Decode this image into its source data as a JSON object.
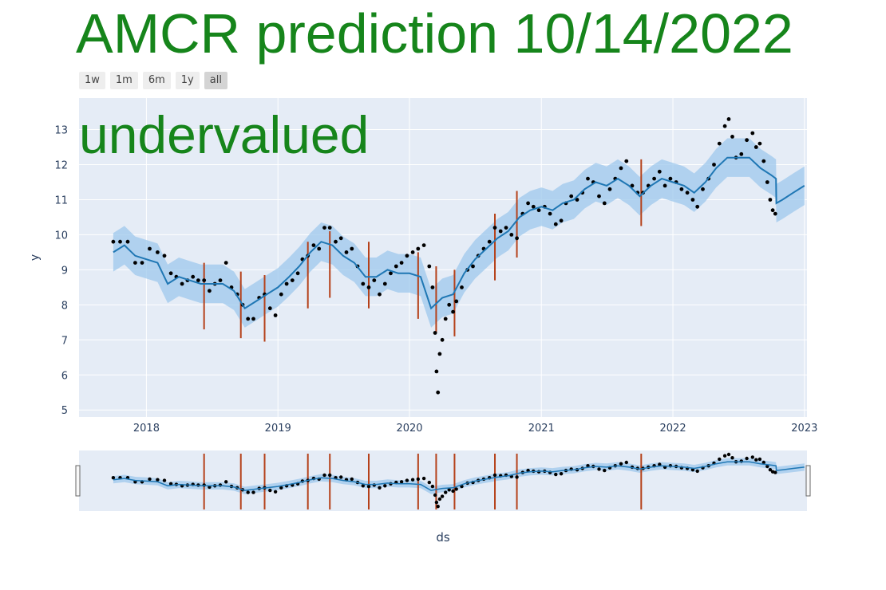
{
  "page": {
    "title": "AMCR prediction 10/14/2022",
    "verdict": "undervalued",
    "range_buttons": [
      {
        "label": "1w",
        "active": false
      },
      {
        "label": "1m",
        "active": false
      },
      {
        "label": "6m",
        "active": false
      },
      {
        "label": "1y",
        "active": false
      },
      {
        "label": "all",
        "active": true
      }
    ]
  },
  "colors": {
    "title": "#16851b",
    "plot_bg": "#e5ecf6",
    "grid": "#ffffff",
    "forecast_line": "#1f77b4",
    "band": "#9ec8ec",
    "points": "#000000",
    "changepoints": "#b5411a"
  },
  "chart_data": {
    "type": "scatter",
    "title": "",
    "xlabel": "ds",
    "ylabel": "y",
    "x_ticks": [
      "2018",
      "2019",
      "2020",
      "2021",
      "2022",
      "2023"
    ],
    "y_ticks": [
      5,
      6,
      7,
      8,
      9,
      10,
      11,
      12,
      13
    ],
    "xlim": [
      "2017-06-28",
      "2023-01-08"
    ],
    "ylim": [
      4.8,
      13.9
    ],
    "grid": true,
    "rangeslider": true,
    "forecast": {
      "name": "yhat",
      "points": [
        [
          "2017-10-01",
          9.5
        ],
        [
          "2017-11-01",
          9.7
        ],
        [
          "2017-12-01",
          9.4
        ],
        [
          "2018-01-01",
          9.3
        ],
        [
          "2018-02-01",
          9.2
        ],
        [
          "2018-03-01",
          8.6
        ],
        [
          "2018-04-01",
          8.8
        ],
        [
          "2018-05-01",
          8.7
        ],
        [
          "2018-06-01",
          8.6
        ],
        [
          "2018-07-01",
          8.6
        ],
        [
          "2018-08-01",
          8.6
        ],
        [
          "2018-09-01",
          8.4
        ],
        [
          "2018-10-01",
          7.9
        ],
        [
          "2018-11-01",
          8.1
        ],
        [
          "2018-12-01",
          8.3
        ],
        [
          "2019-01-01",
          8.5
        ],
        [
          "2019-02-01",
          8.8
        ],
        [
          "2019-03-01",
          9.1
        ],
        [
          "2019-04-01",
          9.5
        ],
        [
          "2019-05-01",
          9.8
        ],
        [
          "2019-06-01",
          9.7
        ],
        [
          "2019-07-01",
          9.4
        ],
        [
          "2019-08-01",
          9.2
        ],
        [
          "2019-09-01",
          8.8
        ],
        [
          "2019-10-01",
          8.8
        ],
        [
          "2019-11-01",
          9.0
        ],
        [
          "2019-12-01",
          8.9
        ],
        [
          "2020-01-01",
          8.9
        ],
        [
          "2020-02-01",
          8.8
        ],
        [
          "2020-03-01",
          7.9
        ],
        [
          "2020-04-01",
          8.2
        ],
        [
          "2020-05-01",
          8.3
        ],
        [
          "2020-06-01",
          8.9
        ],
        [
          "2020-07-01",
          9.3
        ],
        [
          "2020-08-01",
          9.6
        ],
        [
          "2020-09-01",
          9.9
        ],
        [
          "2020-10-01",
          10.1
        ],
        [
          "2020-11-01",
          10.5
        ],
        [
          "2020-12-01",
          10.7
        ],
        [
          "2021-01-01",
          10.8
        ],
        [
          "2021-02-01",
          10.7
        ],
        [
          "2021-03-01",
          10.9
        ],
        [
          "2021-04-01",
          11.0
        ],
        [
          "2021-05-01",
          11.3
        ],
        [
          "2021-06-01",
          11.5
        ],
        [
          "2021-07-01",
          11.4
        ],
        [
          "2021-08-01",
          11.6
        ],
        [
          "2021-09-01",
          11.4
        ],
        [
          "2021-10-01",
          11.1
        ],
        [
          "2021-11-01",
          11.4
        ],
        [
          "2021-12-01",
          11.6
        ],
        [
          "2022-01-01",
          11.5
        ],
        [
          "2022-02-01",
          11.4
        ],
        [
          "2022-03-01",
          11.2
        ],
        [
          "2022-04-01",
          11.5
        ],
        [
          "2022-05-01",
          11.9
        ],
        [
          "2022-06-01",
          12.2
        ],
        [
          "2022-07-01",
          12.2
        ],
        [
          "2022-08-01",
          12.2
        ],
        [
          "2022-09-01",
          11.9
        ],
        [
          "2022-10-01",
          11.7
        ],
        [
          "2022-10-14",
          11.6
        ],
        [
          "2022-10-15",
          10.9
        ],
        [
          "2022-11-01",
          11.0
        ],
        [
          "2022-12-01",
          11.2
        ],
        [
          "2023-01-01",
          11.4
        ]
      ],
      "band_halfwidth": 0.55
    },
    "actual_points": {
      "name": "y",
      "points": [
        [
          "2017-10-01",
          9.8
        ],
        [
          "2017-10-20",
          9.8
        ],
        [
          "2017-11-10",
          9.8
        ],
        [
          "2017-12-01",
          9.2
        ],
        [
          "2017-12-20",
          9.2
        ],
        [
          "2018-01-10",
          9.6
        ],
        [
          "2018-02-01",
          9.5
        ],
        [
          "2018-02-20",
          9.4
        ],
        [
          "2018-03-10",
          8.9
        ],
        [
          "2018-03-25",
          8.8
        ],
        [
          "2018-04-10",
          8.6
        ],
        [
          "2018-04-25",
          8.7
        ],
        [
          "2018-05-10",
          8.8
        ],
        [
          "2018-05-25",
          8.7
        ],
        [
          "2018-06-10",
          8.7
        ],
        [
          "2018-06-25",
          8.4
        ],
        [
          "2018-07-10",
          8.6
        ],
        [
          "2018-07-25",
          8.7
        ],
        [
          "2018-08-10",
          9.2
        ],
        [
          "2018-08-25",
          8.5
        ],
        [
          "2018-09-10",
          8.3
        ],
        [
          "2018-09-25",
          8.0
        ],
        [
          "2018-10-10",
          7.6
        ],
        [
          "2018-10-25",
          7.6
        ],
        [
          "2018-11-10",
          8.2
        ],
        [
          "2018-11-25",
          8.3
        ],
        [
          "2018-12-10",
          7.9
        ],
        [
          "2018-12-25",
          7.7
        ],
        [
          "2019-01-10",
          8.3
        ],
        [
          "2019-01-25",
          8.6
        ],
        [
          "2019-02-10",
          8.7
        ],
        [
          "2019-02-25",
          8.9
        ],
        [
          "2019-03-10",
          9.3
        ],
        [
          "2019-03-25",
          9.4
        ],
        [
          "2019-04-10",
          9.7
        ],
        [
          "2019-04-25",
          9.6
        ],
        [
          "2019-05-10",
          10.2
        ],
        [
          "2019-05-25",
          10.2
        ],
        [
          "2019-06-10",
          9.8
        ],
        [
          "2019-06-25",
          9.9
        ],
        [
          "2019-07-10",
          9.5
        ],
        [
          "2019-07-25",
          9.6
        ],
        [
          "2019-08-10",
          9.1
        ],
        [
          "2019-08-25",
          8.6
        ],
        [
          "2019-09-10",
          8.5
        ],
        [
          "2019-09-25",
          8.7
        ],
        [
          "2019-10-10",
          8.3
        ],
        [
          "2019-10-25",
          8.6
        ],
        [
          "2019-11-10",
          8.9
        ],
        [
          "2019-11-25",
          9.1
        ],
        [
          "2019-12-10",
          9.2
        ],
        [
          "2019-12-25",
          9.4
        ],
        [
          "2020-01-10",
          9.5
        ],
        [
          "2020-01-25",
          9.6
        ],
        [
          "2020-02-10",
          9.7
        ],
        [
          "2020-02-25",
          9.1
        ],
        [
          "2020-03-05",
          8.5
        ],
        [
          "2020-03-12",
          7.2
        ],
        [
          "2020-03-16",
          6.1
        ],
        [
          "2020-03-20",
          5.5
        ],
        [
          "2020-03-25",
          6.6
        ],
        [
          "2020-04-01",
          7.0
        ],
        [
          "2020-04-10",
          7.6
        ],
        [
          "2020-04-20",
          8.0
        ],
        [
          "2020-05-01",
          7.8
        ],
        [
          "2020-05-10",
          8.1
        ],
        [
          "2020-05-25",
          8.5
        ],
        [
          "2020-06-10",
          9.0
        ],
        [
          "2020-06-25",
          9.1
        ],
        [
          "2020-07-10",
          9.4
        ],
        [
          "2020-07-25",
          9.6
        ],
        [
          "2020-08-10",
          9.8
        ],
        [
          "2020-08-25",
          10.2
        ],
        [
          "2020-09-10",
          10.1
        ],
        [
          "2020-09-25",
          10.2
        ],
        [
          "2020-10-10",
          10.0
        ],
        [
          "2020-10-25",
          9.9
        ],
        [
          "2020-11-10",
          10.6
        ],
        [
          "2020-11-25",
          10.9
        ],
        [
          "2020-12-10",
          10.8
        ],
        [
          "2020-12-25",
          10.7
        ],
        [
          "2021-01-10",
          10.8
        ],
        [
          "2021-01-25",
          10.6
        ],
        [
          "2021-02-10",
          10.3
        ],
        [
          "2021-02-25",
          10.4
        ],
        [
          "2021-03-10",
          10.9
        ],
        [
          "2021-03-25",
          11.1
        ],
        [
          "2021-04-10",
          11.0
        ],
        [
          "2021-04-25",
          11.2
        ],
        [
          "2021-05-10",
          11.6
        ],
        [
          "2021-05-25",
          11.5
        ],
        [
          "2021-06-10",
          11.1
        ],
        [
          "2021-06-25",
          10.9
        ],
        [
          "2021-07-10",
          11.3
        ],
        [
          "2021-07-25",
          11.6
        ],
        [
          "2021-08-10",
          11.9
        ],
        [
          "2021-08-25",
          12.1
        ],
        [
          "2021-09-10",
          11.4
        ],
        [
          "2021-09-25",
          11.2
        ],
        [
          "2021-10-10",
          11.2
        ],
        [
          "2021-10-25",
          11.4
        ],
        [
          "2021-11-10",
          11.6
        ],
        [
          "2021-11-25",
          11.8
        ],
        [
          "2021-12-10",
          11.4
        ],
        [
          "2021-12-25",
          11.6
        ],
        [
          "2022-01-10",
          11.5
        ],
        [
          "2022-01-25",
          11.3
        ],
        [
          "2022-02-10",
          11.2
        ],
        [
          "2022-02-25",
          11.0
        ],
        [
          "2022-03-10",
          10.8
        ],
        [
          "2022-03-25",
          11.3
        ],
        [
          "2022-04-10",
          11.6
        ],
        [
          "2022-04-25",
          12.0
        ],
        [
          "2022-05-10",
          12.6
        ],
        [
          "2022-05-25",
          13.1
        ],
        [
          "2022-06-05",
          13.3
        ],
        [
          "2022-06-15",
          12.8
        ],
        [
          "2022-06-25",
          12.2
        ],
        [
          "2022-07-10",
          12.3
        ],
        [
          "2022-07-25",
          12.7
        ],
        [
          "2022-08-10",
          12.9
        ],
        [
          "2022-08-20",
          12.5
        ],
        [
          "2022-08-30",
          12.6
        ],
        [
          "2022-09-10",
          12.1
        ],
        [
          "2022-09-20",
          11.5
        ],
        [
          "2022-09-28",
          11.0
        ],
        [
          "2022-10-05",
          10.7
        ],
        [
          "2022-10-12",
          10.6
        ]
      ]
    },
    "changepoints": [
      {
        "date": "2018-06-10",
        "y0": 7.3,
        "y1": 9.2
      },
      {
        "date": "2018-09-20",
        "y0": 7.05,
        "y1": 8.95
      },
      {
        "date": "2018-11-25",
        "y0": 6.95,
        "y1": 8.85
      },
      {
        "date": "2019-03-25",
        "y0": 7.9,
        "y1": 9.8
      },
      {
        "date": "2019-05-25",
        "y0": 8.2,
        "y1": 10.1
      },
      {
        "date": "2019-09-10",
        "y0": 7.9,
        "y1": 9.8
      },
      {
        "date": "2020-01-25",
        "y0": 7.6,
        "y1": 9.5
      },
      {
        "date": "2020-03-15",
        "y0": 7.2,
        "y1": 9.1
      },
      {
        "date": "2020-05-05",
        "y0": 7.1,
        "y1": 9.0
      },
      {
        "date": "2020-08-25",
        "y0": 8.7,
        "y1": 10.6
      },
      {
        "date": "2020-10-25",
        "y0": 9.35,
        "y1": 11.25
      },
      {
        "date": "2021-10-05",
        "y0": 10.25,
        "y1": 12.15
      }
    ]
  }
}
